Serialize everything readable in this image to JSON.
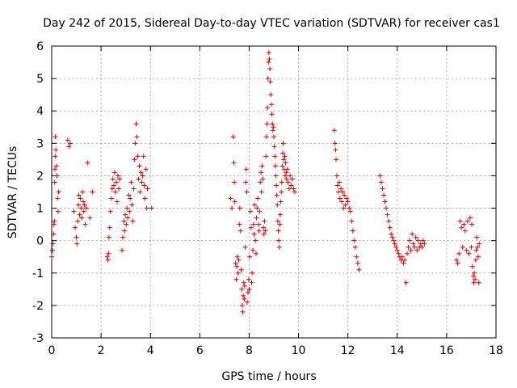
{
  "chart_data": {
    "type": "scatter",
    "title": "Day 242 of 2015, Sidereal Day-to-day VTEC variation (SDTVAR) for receiver cas1",
    "xlabel": "GPS time / hours",
    "ylabel": "SDTVAR / TECUs",
    "xlim": [
      0,
      18
    ],
    "ylim": [
      -3,
      6
    ],
    "xticks": [
      "0",
      "2",
      "4",
      "6",
      "8",
      "10",
      "12",
      "14",
      "16",
      "18"
    ],
    "yticks": [
      "-3",
      "-2",
      "-1",
      "0",
      "1",
      "2",
      "3",
      "4",
      "5",
      "6"
    ],
    "grid": true,
    "marker": "+",
    "color": "#e00000",
    "series": [
      {
        "name": "SDTVAR",
        "points": [
          [
            0.0,
            -0.5
          ],
          [
            0.03,
            -0.3
          ],
          [
            0.05,
            -0.1
          ],
          [
            0.07,
            0.2
          ],
          [
            0.09,
            0.5
          ],
          [
            0.11,
            0.6
          ],
          [
            0.12,
            1.8
          ],
          [
            0.13,
            2.2
          ],
          [
            0.14,
            2.6
          ],
          [
            0.15,
            3.2
          ],
          [
            0.17,
            2.8
          ],
          [
            0.19,
            2.3
          ],
          [
            0.21,
            2.0
          ],
          [
            0.24,
            1.3
          ],
          [
            0.26,
            0.9
          ],
          [
            0.28,
            1.5
          ],
          [
            0.65,
            3.1
          ],
          [
            0.7,
            2.9
          ],
          [
            0.75,
            3.0
          ],
          [
            0.9,
            0.9
          ],
          [
            0.95,
            0.4
          ],
          [
            1.0,
            0.1
          ],
          [
            1.02,
            -0.1
          ],
          [
            1.05,
            0.6
          ],
          [
            1.08,
            1.1
          ],
          [
            1.1,
            1.4
          ],
          [
            1.13,
            0.8
          ],
          [
            1.16,
            1.3
          ],
          [
            1.19,
            1.0
          ],
          [
            1.22,
            0.7
          ],
          [
            1.25,
            1.5
          ],
          [
            1.28,
            1.2
          ],
          [
            1.3,
            0.9
          ],
          [
            1.33,
            1.1
          ],
          [
            1.36,
            0.5
          ],
          [
            1.4,
            1.0
          ],
          [
            1.45,
            2.4
          ],
          [
            1.55,
            0.7
          ],
          [
            1.65,
            1.5
          ],
          [
            2.25,
            -0.5
          ],
          [
            2.28,
            -0.6
          ],
          [
            2.3,
            -0.4
          ],
          [
            2.32,
            0.1
          ],
          [
            2.35,
            0.4
          ],
          [
            2.38,
            0.9
          ],
          [
            2.42,
            1.3
          ],
          [
            2.45,
            1.6
          ],
          [
            2.48,
            1.9
          ],
          [
            2.52,
            1.7
          ],
          [
            2.55,
            2.1
          ],
          [
            2.58,
            1.5
          ],
          [
            2.62,
            1.8
          ],
          [
            2.65,
            1.2
          ],
          [
            2.68,
            2.0
          ],
          [
            2.72,
            1.6
          ],
          [
            2.75,
            1.9
          ],
          [
            2.85,
            -0.3
          ],
          [
            2.88,
            0.1
          ],
          [
            2.92,
            0.6
          ],
          [
            2.95,
            0.3
          ],
          [
            2.98,
            0.8
          ],
          [
            3.02,
            0.5
          ],
          [
            3.05,
            1.0
          ],
          [
            3.08,
            0.7
          ],
          [
            3.12,
            1.4
          ],
          [
            3.15,
            0.9
          ],
          [
            3.18,
            1.3
          ],
          [
            3.22,
            1.8
          ],
          [
            3.25,
            1.1
          ],
          [
            3.28,
            0.6
          ],
          [
            3.32,
            1.6
          ],
          [
            3.35,
            2.5
          ],
          [
            3.38,
            3.0
          ],
          [
            3.42,
            3.6
          ],
          [
            3.45,
            3.2
          ],
          [
            3.48,
            2.6
          ],
          [
            3.52,
            1.9
          ],
          [
            3.55,
            2.3
          ],
          [
            3.58,
            1.5
          ],
          [
            3.62,
            2.1
          ],
          [
            3.65,
            1.8
          ],
          [
            3.68,
            2.0
          ],
          [
            3.72,
            2.6
          ],
          [
            3.75,
            1.7
          ],
          [
            3.78,
            1.3
          ],
          [
            3.82,
            2.2
          ],
          [
            3.85,
            1.0
          ],
          [
            3.88,
            1.6
          ],
          [
            4.05,
            1.0
          ],
          [
            7.25,
            1.3
          ],
          [
            7.3,
            1.0
          ],
          [
            7.35,
            3.2
          ],
          [
            7.38,
            2.4
          ],
          [
            7.4,
            1.8
          ],
          [
            7.42,
            1.2
          ],
          [
            7.45,
            -0.7
          ],
          [
            7.48,
            -1.2
          ],
          [
            7.5,
            -0.8
          ],
          [
            7.52,
            -0.5
          ],
          [
            7.55,
            -1.0
          ],
          [
            7.58,
            -0.6
          ],
          [
            7.6,
            0.5
          ],
          [
            7.62,
            1.0
          ],
          [
            7.65,
            0.3
          ],
          [
            7.68,
            -0.9
          ],
          [
            7.7,
            -1.5
          ],
          [
            7.72,
            -2.0
          ],
          [
            7.74,
            -2.2
          ],
          [
            7.76,
            -1.7
          ],
          [
            7.78,
            -1.3
          ],
          [
            7.8,
            -1.8
          ],
          [
            7.82,
            -1.4
          ],
          [
            7.84,
            -0.2
          ],
          [
            7.86,
            1.8
          ],
          [
            7.88,
            2.2
          ],
          [
            7.9,
            1.5
          ],
          [
            7.92,
            -1.9
          ],
          [
            7.95,
            -1.6
          ],
          [
            7.98,
            -1.2
          ],
          [
            8.0,
            -1.5
          ],
          [
            8.02,
            -0.5
          ],
          [
            8.05,
            0.9
          ],
          [
            8.08,
            0.4
          ],
          [
            8.1,
            -1.3
          ],
          [
            8.12,
            -1.0
          ],
          [
            8.15,
            -0.3
          ],
          [
            8.18,
            0.5
          ],
          [
            8.2,
            0.2
          ],
          [
            8.22,
            1.1
          ],
          [
            8.25,
            0.0
          ],
          [
            8.28,
            -0.4
          ],
          [
            8.3,
            0.7
          ],
          [
            8.32,
            1.0
          ],
          [
            8.35,
            1.3
          ],
          [
            8.38,
            0.5
          ],
          [
            8.4,
            0.3
          ],
          [
            8.42,
            0.9
          ],
          [
            8.45,
            1.8
          ],
          [
            8.48,
            2.1
          ],
          [
            8.5,
            1.5
          ],
          [
            8.52,
            2.3
          ],
          [
            8.55,
            1.9
          ],
          [
            8.58,
            0.4
          ],
          [
            8.6,
            0.2
          ],
          [
            8.62,
            0.6
          ],
          [
            8.65,
            0.3
          ],
          [
            8.68,
            2.6
          ],
          [
            8.7,
            3.2
          ],
          [
            8.72,
            3.6
          ],
          [
            8.74,
            4.1
          ],
          [
            8.76,
            5.0
          ],
          [
            8.78,
            5.5
          ],
          [
            8.8,
            5.8
          ],
          [
            8.82,
            5.6
          ],
          [
            8.84,
            5.3
          ],
          [
            8.86,
            4.9
          ],
          [
            8.88,
            4.5
          ],
          [
            8.9,
            4.2
          ],
          [
            8.92,
            3.9
          ],
          [
            8.94,
            3.6
          ],
          [
            8.96,
            3.4
          ],
          [
            8.98,
            3.5
          ],
          [
            9.0,
            3.2
          ],
          [
            9.02,
            2.9
          ],
          [
            9.04,
            2.6
          ],
          [
            9.06,
            2.3
          ],
          [
            9.08,
            2.0
          ],
          [
            9.1,
            1.7
          ],
          [
            9.12,
            1.4
          ],
          [
            9.14,
            1.1
          ],
          [
            9.16,
            0.6
          ],
          [
            9.18,
            0.3
          ],
          [
            9.2,
            0.0
          ],
          [
            9.22,
            -0.2
          ],
          [
            9.24,
            0.5
          ],
          [
            9.26,
            0.8
          ],
          [
            9.28,
            1.2
          ],
          [
            9.3,
            1.5
          ],
          [
            9.32,
            1.8
          ],
          [
            9.34,
            2.3
          ],
          [
            9.36,
            2.7
          ],
          [
            9.38,
            3.0
          ],
          [
            9.4,
            2.5
          ],
          [
            9.42,
            2.2
          ],
          [
            9.44,
            2.6
          ],
          [
            9.46,
            2.0
          ],
          [
            9.48,
            2.4
          ],
          [
            9.5,
            2.1
          ],
          [
            9.52,
            1.9
          ],
          [
            9.55,
            2.2
          ],
          [
            9.58,
            1.8
          ],
          [
            9.62,
            1.6
          ],
          [
            9.66,
            2.0
          ],
          [
            9.7,
            1.7
          ],
          [
            9.75,
            1.9
          ],
          [
            9.8,
            1.6
          ],
          [
            9.85,
            1.5
          ],
          [
            11.45,
            3.4
          ],
          [
            11.48,
            3.0
          ],
          [
            11.5,
            2.8
          ],
          [
            11.52,
            2.5
          ],
          [
            11.55,
            2.0
          ],
          [
            11.58,
            1.7
          ],
          [
            11.62,
            1.5
          ],
          [
            11.65,
            1.8
          ],
          [
            11.68,
            1.3
          ],
          [
            11.72,
            1.6
          ],
          [
            11.75,
            1.2
          ],
          [
            11.78,
            1.5
          ],
          [
            11.82,
            1.0
          ],
          [
            11.85,
            1.4
          ],
          [
            11.9,
            1.1
          ],
          [
            11.95,
            1.3
          ],
          [
            12.0,
            1.2
          ],
          [
            12.05,
            1.0
          ],
          [
            12.1,
            0.9
          ],
          [
            12.15,
            0.6
          ],
          [
            12.2,
            0.3
          ],
          [
            12.25,
            0.0
          ],
          [
            12.3,
            -0.2
          ],
          [
            12.35,
            -0.5
          ],
          [
            12.4,
            -0.7
          ],
          [
            12.45,
            -0.9
          ],
          [
            13.3,
            2.0
          ],
          [
            13.35,
            1.8
          ],
          [
            13.4,
            1.6
          ],
          [
            13.45,
            1.4
          ],
          [
            13.5,
            1.2
          ],
          [
            13.55,
            1.0
          ],
          [
            13.6,
            0.8
          ],
          [
            13.65,
            0.6
          ],
          [
            13.7,
            0.4
          ],
          [
            13.75,
            0.2
          ],
          [
            13.8,
            0.1
          ],
          [
            13.85,
            0.0
          ],
          [
            13.9,
            -0.1
          ],
          [
            13.95,
            -0.2
          ],
          [
            14.0,
            -0.3
          ],
          [
            14.05,
            -0.4
          ],
          [
            14.1,
            -0.5
          ],
          [
            14.15,
            -0.6
          ],
          [
            14.2,
            -0.5
          ],
          [
            14.25,
            -0.7
          ],
          [
            14.3,
            -0.6
          ],
          [
            14.35,
            -1.3
          ],
          [
            14.4,
            -0.4
          ],
          [
            14.45,
            -0.2
          ],
          [
            14.5,
            0.0
          ],
          [
            14.55,
            -0.3
          ],
          [
            14.6,
            0.2
          ],
          [
            14.65,
            -0.1
          ],
          [
            14.7,
            -0.2
          ],
          [
            14.75,
            0.1
          ],
          [
            14.8,
            -0.3
          ],
          [
            14.85,
            0.0
          ],
          [
            14.9,
            -0.2
          ],
          [
            14.95,
            -0.1
          ],
          [
            15.0,
            -0.2
          ],
          [
            15.05,
            0.0
          ],
          [
            15.1,
            -0.1
          ],
          [
            16.4,
            -0.6
          ],
          [
            16.45,
            -0.7
          ],
          [
            16.5,
            -0.4
          ],
          [
            16.55,
            0.6
          ],
          [
            16.6,
            0.4
          ],
          [
            16.65,
            -0.2
          ],
          [
            16.7,
            0.5
          ],
          [
            16.75,
            0.3
          ],
          [
            16.8,
            -0.3
          ],
          [
            16.85,
            0.6
          ],
          [
            16.9,
            -0.4
          ],
          [
            16.95,
            0.7
          ],
          [
            17.0,
            -0.2
          ],
          [
            17.02,
            0.5
          ],
          [
            17.05,
            -0.8
          ],
          [
            17.08,
            -1.1
          ],
          [
            17.1,
            -1.3
          ],
          [
            17.12,
            -1.0
          ],
          [
            17.15,
            -1.2
          ],
          [
            17.18,
            -0.6
          ],
          [
            17.2,
            -0.3
          ],
          [
            17.22,
            0.1
          ],
          [
            17.25,
            -0.2
          ],
          [
            17.28,
            -0.5
          ],
          [
            17.3,
            -1.3
          ],
          [
            17.32,
            -0.1
          ]
        ]
      }
    ]
  }
}
